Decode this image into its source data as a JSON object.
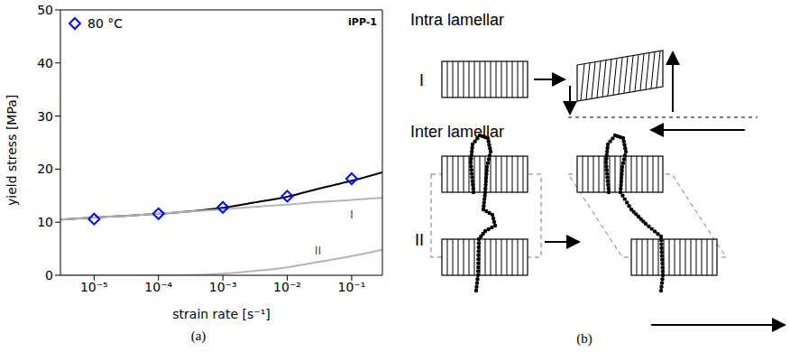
{
  "chart_data": {
    "type": "line",
    "title": "iPP-1",
    "panel_label": "(a)",
    "x_label": "strain rate [s⁻¹]",
    "y_label": "yield stress [MPa]",
    "log": "x",
    "xlim": [
      3e-06,
      0.3
    ],
    "xticks": [
      {
        "value": 1e-05,
        "label": "10⁻⁵"
      },
      {
        "value": 0.0001,
        "label": "10⁻⁴"
      },
      {
        "value": 0.001,
        "label": "10⁻³"
      },
      {
        "value": 0.01,
        "label": "10⁻²"
      },
      {
        "value": 0.1,
        "label": "10⁻¹"
      }
    ],
    "ylim": [
      0,
      50
    ],
    "yticks": [
      0,
      10,
      20,
      30,
      40,
      50
    ],
    "grid": false,
    "legend": "upper left",
    "series": [
      {
        "name": "80 °C",
        "type": "scatter",
        "marker": "diamond",
        "color": "#0000ff",
        "x": [
          1e-05,
          0.0001,
          0.001,
          0.01,
          0.1
        ],
        "values": [
          10.6,
          11.6,
          12.8,
          14.9,
          18.2
        ]
      },
      {
        "type": "line",
        "color": "#000000",
        "x": [
          3e-06,
          1e-05,
          3e-05,
          0.0001,
          0.0003,
          0.001,
          0.003,
          0.01,
          0.03,
          0.1,
          0.3
        ],
        "values": [
          10.5,
          10.9,
          11.2,
          11.6,
          12.05,
          12.7,
          13.7,
          14.8,
          16.3,
          17.8,
          19.4
        ]
      },
      {
        "name": "I",
        "type": "line",
        "color": "#b4b4b4",
        "x": [
          3e-06,
          1e-05,
          3e-05,
          0.0001,
          0.0003,
          0.001,
          0.003,
          0.01,
          0.03,
          0.1,
          0.3
        ],
        "values": [
          10.5,
          10.9,
          11.2,
          11.6,
          12.0,
          12.4,
          12.9,
          13.3,
          13.8,
          14.2,
          14.6
        ]
      },
      {
        "name": "II",
        "type": "line",
        "color": "#b4b4b4",
        "x": [
          3e-06,
          1e-05,
          3e-05,
          0.0001,
          0.0003,
          0.001,
          0.003,
          0.01,
          0.03,
          0.1,
          0.3
        ],
        "values": [
          0,
          0,
          0,
          0,
          0.05,
          0.3,
          0.8,
          1.5,
          2.5,
          3.6,
          4.8
        ]
      }
    ]
  },
  "diagram": {
    "panel_label": "(b)",
    "sections": [
      {
        "title": "Intra lamellar",
        "label": "I"
      },
      {
        "title": "Inter lamellar",
        "label": "II"
      }
    ]
  }
}
